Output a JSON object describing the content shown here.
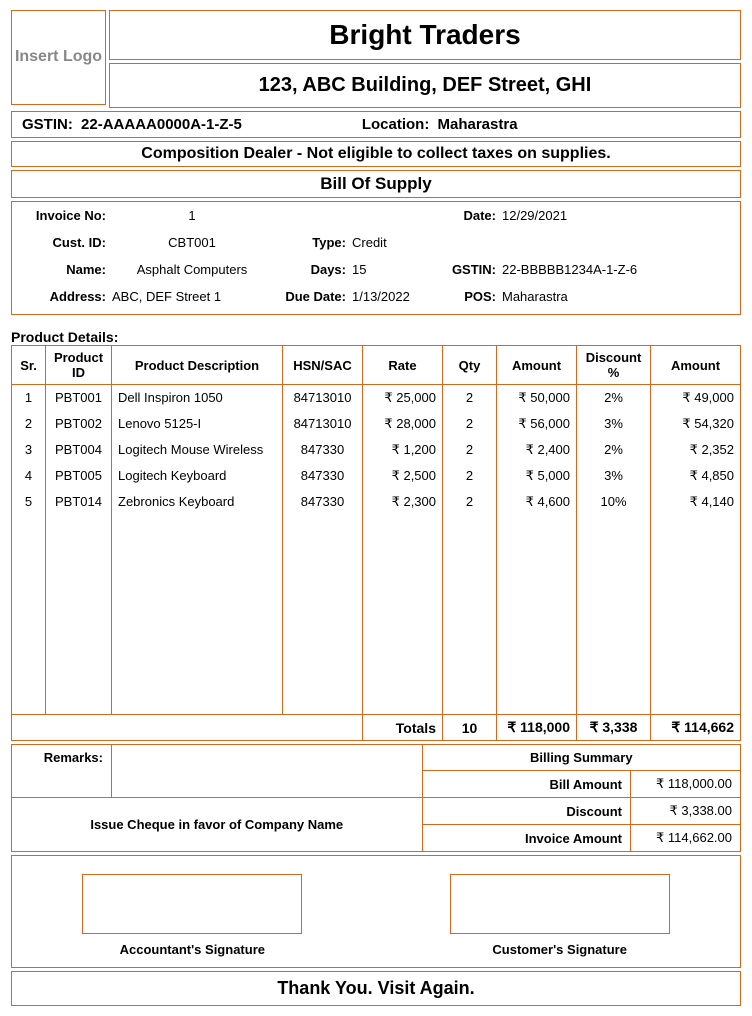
{
  "logo_placeholder": "Insert Logo",
  "company": {
    "name": "Bright Traders",
    "address": "123, ABC Building, DEF Street, GHI",
    "gstin_label": "GSTIN:",
    "gstin": "22-AAAAA0000A-1-Z-5",
    "location_label": "Location:",
    "location": "Maharastra",
    "composition_note": "Composition Dealer - Not eligible to collect taxes on supplies."
  },
  "doc_title": "Bill Of Supply",
  "labels": {
    "invoice_no": "Invoice No:",
    "date": "Date:",
    "cust_id": "Cust. ID:",
    "name": "Name:",
    "type": "Type:",
    "days": "Days:",
    "gstin": "GSTIN:",
    "address": "Address:",
    "due_date": "Due Date:",
    "pos": "POS:",
    "remarks": "Remarks:",
    "product_details": "Product Details:",
    "totals": "Totals",
    "billing_summary": "Billing Summary",
    "bill_amount": "Bill Amount",
    "discount": "Discount",
    "invoice_amount": "Invoice Amount",
    "cheque_note": "Issue Cheque in favor of Company Name",
    "accountant_sig": "Accountant's Signature",
    "customer_sig": "Customer's Signature",
    "thank_you": "Thank You. Visit Again."
  },
  "invoice": {
    "no": "1",
    "date": "12/29/2021",
    "cust_id": "CBT001",
    "cust_name": "Asphalt Computers",
    "type": "Credit",
    "days": "15",
    "cust_gstin": "22-BBBBB1234A-1-Z-6",
    "cust_address": "ABC, DEF Street 1",
    "due_date": "1/13/2022",
    "pos": "Maharastra"
  },
  "columns": {
    "sr": "Sr.",
    "pid": "Product ID",
    "desc": "Product Description",
    "hsn": "HSN/SAC",
    "rate": "Rate",
    "qty": "Qty",
    "amount": "Amount",
    "discount": "Discount %",
    "amount2": "Amount"
  },
  "items": [
    {
      "sr": "1",
      "pid": "PBT001",
      "desc": "Dell Inspiron 1050",
      "hsn": "84713010",
      "rate": "₹ 25,000",
      "qty": "2",
      "amount": "₹ 50,000",
      "disc": "2%",
      "amount2": "₹ 49,000"
    },
    {
      "sr": "2",
      "pid": "PBT002",
      "desc": "Lenovo 5125-I",
      "hsn": "84713010",
      "rate": "₹ 28,000",
      "qty": "2",
      "amount": "₹ 56,000",
      "disc": "3%",
      "amount2": "₹ 54,320"
    },
    {
      "sr": "3",
      "pid": "PBT004",
      "desc": "Logitech Mouse Wireless",
      "hsn": "847330",
      "rate": "₹ 1,200",
      "qty": "2",
      "amount": "₹ 2,400",
      "disc": "2%",
      "amount2": "₹ 2,352"
    },
    {
      "sr": "4",
      "pid": "PBT005",
      "desc": "Logitech Keyboard",
      "hsn": "847330",
      "rate": "₹ 2,500",
      "qty": "2",
      "amount": "₹ 5,000",
      "disc": "3%",
      "amount2": "₹ 4,850"
    },
    {
      "sr": "5",
      "pid": "PBT014",
      "desc": "Zebronics Keyboard",
      "hsn": "847330",
      "rate": "₹ 2,300",
      "qty": "2",
      "amount": "₹ 4,600",
      "disc": "10%",
      "amount2": "₹ 4,140"
    }
  ],
  "totals": {
    "qty": "10",
    "amount": "₹ 118,000",
    "discount": "₹ 3,338",
    "amount2": "₹ 114,662"
  },
  "summary": {
    "bill_amount": "₹ 118,000.00",
    "discount": "₹ 3,338.00",
    "invoice_amount": "₹ 114,662.00"
  },
  "colors": {
    "border": "#d2691e",
    "text": "#000000",
    "placeholder": "#888888"
  }
}
